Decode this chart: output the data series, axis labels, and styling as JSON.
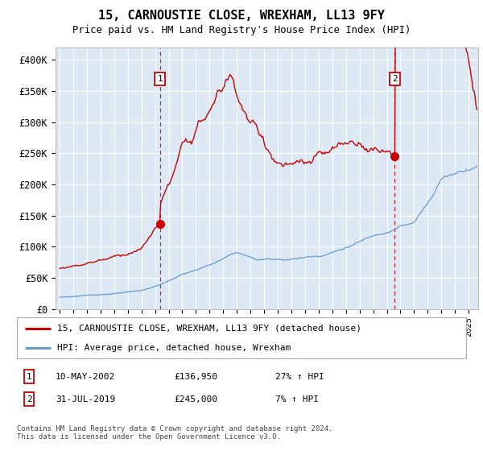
{
  "title": "15, CARNOUSTIE CLOSE, WREXHAM, LL13 9FY",
  "subtitle": "Price paid vs. HM Land Registry's House Price Index (HPI)",
  "ylabel_ticks": [
    "£0",
    "£50K",
    "£100K",
    "£150K",
    "£200K",
    "£250K",
    "£300K",
    "£350K",
    "£400K"
  ],
  "ytick_values": [
    0,
    50000,
    100000,
    150000,
    200000,
    250000,
    300000,
    350000,
    400000
  ],
  "ylim": [
    0,
    420000
  ],
  "xlim_start": 1994.7,
  "xlim_end": 2025.7,
  "background_color": "#dce9f5",
  "grid_color": "#ffffff",
  "red_line_color": "#cc0000",
  "blue_line_color": "#6699cc",
  "marker1_x": 2002.36,
  "marker1_y": 136950,
  "marker2_x": 2019.58,
  "marker2_y": 245000,
  "sale1_date": "10-MAY-2002",
  "sale1_price": "£136,950",
  "sale1_hpi": "27% ↑ HPI",
  "sale2_date": "31-JUL-2019",
  "sale2_price": "£245,000",
  "sale2_hpi": "7% ↑ HPI",
  "legend_line1": "15, CARNOUSTIE CLOSE, WREXHAM, LL13 9FY (detached house)",
  "legend_line2": "HPI: Average price, detached house, Wrexham",
  "footer": "Contains HM Land Registry data © Crown copyright and database right 2024.\nThis data is licensed under the Open Government Licence v3.0."
}
